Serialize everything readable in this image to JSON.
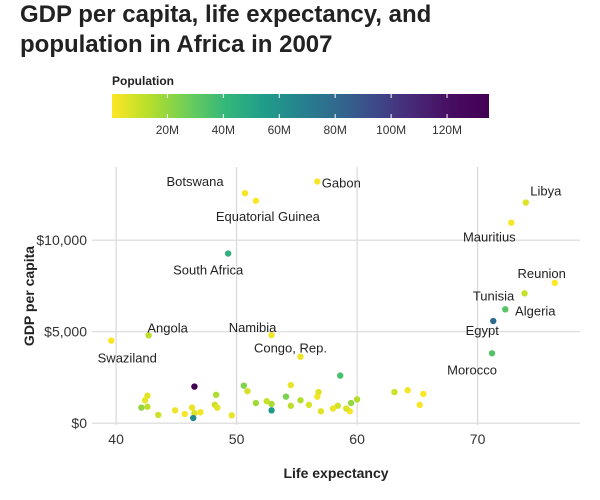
{
  "chart_data": {
    "type": "scatter",
    "title_lines": [
      "GDP per capita, life expectancy, and",
      "population in Africa in 2007"
    ],
    "xlabel": "Life expectancy",
    "ylabel": "GDP per capita",
    "xlim": [
      38,
      78.5
    ],
    "ylim": [
      -100,
      14000
    ],
    "xticks": [
      40,
      50,
      60,
      70
    ],
    "xtick_labels": [
      "40",
      "50",
      "60",
      "70"
    ],
    "yticks": [
      0,
      5000,
      10000
    ],
    "ytick_labels": [
      "$0",
      "$5,000",
      "$10,000"
    ],
    "grid": true,
    "color_scale": {
      "name": "viridis",
      "title": "Population",
      "min": 0.2,
      "max": 135,
      "ticks": [
        20,
        40,
        60,
        80,
        100,
        120
      ],
      "tick_labels": [
        "20M",
        "40M",
        "60M",
        "80M",
        "100M",
        "120M"
      ],
      "placement": "top"
    },
    "points": [
      {
        "x": 50.7,
        "y": 12570,
        "pop": 1.6,
        "label": "Botswana"
      },
      {
        "x": 51.6,
        "y": 12154,
        "pop": 0.6,
        "label": "Equatorial Guinea"
      },
      {
        "x": 56.7,
        "y": 13206,
        "pop": 1.5,
        "label": "Gabon"
      },
      {
        "x": 74.0,
        "y": 12057,
        "pop": 6.0,
        "label": "Libya"
      },
      {
        "x": 72.8,
        "y": 10957,
        "pop": 1.3,
        "label": "Mauritius"
      },
      {
        "x": 49.3,
        "y": 9270,
        "pop": 44.0,
        "label": "South Africa"
      },
      {
        "x": 76.4,
        "y": 7670,
        "pop": 0.8,
        "label": "Reunion"
      },
      {
        "x": 73.9,
        "y": 7093,
        "pop": 10.3,
        "label": "Tunisia"
      },
      {
        "x": 72.3,
        "y": 6223,
        "pop": 33.3,
        "label": "Algeria"
      },
      {
        "x": 71.3,
        "y": 5581,
        "pop": 80.3,
        "label": "Egypt"
      },
      {
        "x": 71.2,
        "y": 3820,
        "pop": 33.8,
        "label": "Morocco"
      },
      {
        "x": 52.9,
        "y": 4811,
        "pop": 2.1,
        "label": "Namibia"
      },
      {
        "x": 55.3,
        "y": 3633,
        "pop": 3.8,
        "label": "Congo, Rep."
      },
      {
        "x": 42.7,
        "y": 4797,
        "pop": 12.4,
        "label": "Angola"
      },
      {
        "x": 39.6,
        "y": 4513,
        "pop": 1.1,
        "label": "Swaziland"
      },
      {
        "x": 58.6,
        "y": 2600,
        "pop": 36.0,
        "label": ""
      },
      {
        "x": 46.5,
        "y": 2000,
        "pop": 135.0,
        "label": ""
      },
      {
        "x": 50.6,
        "y": 2050,
        "pop": 24.0,
        "label": ""
      },
      {
        "x": 50.9,
        "y": 1750,
        "pop": 8.0,
        "label": ""
      },
      {
        "x": 54.5,
        "y": 2080,
        "pop": 4.0,
        "label": ""
      },
      {
        "x": 56.8,
        "y": 1700,
        "pop": 6.0,
        "label": ""
      },
      {
        "x": 63.1,
        "y": 1700,
        "pop": 9.0,
        "label": ""
      },
      {
        "x": 64.2,
        "y": 1800,
        "pop": 2.0,
        "label": ""
      },
      {
        "x": 65.5,
        "y": 1600,
        "pop": 1.0,
        "label": ""
      },
      {
        "x": 65.2,
        "y": 1000,
        "pop": 1.5,
        "label": ""
      },
      {
        "x": 42.6,
        "y": 1500,
        "pop": 5.0,
        "label": ""
      },
      {
        "x": 42.4,
        "y": 1250,
        "pop": 3.5,
        "label": ""
      },
      {
        "x": 48.3,
        "y": 1550,
        "pop": 15.0,
        "label": ""
      },
      {
        "x": 48.2,
        "y": 1000,
        "pop": 9.0,
        "label": ""
      },
      {
        "x": 48.4,
        "y": 850,
        "pop": 5.0,
        "label": ""
      },
      {
        "x": 42.1,
        "y": 850,
        "pop": 20.0,
        "label": ""
      },
      {
        "x": 42.6,
        "y": 900,
        "pop": 12.0,
        "label": ""
      },
      {
        "x": 43.5,
        "y": 450,
        "pop": 9.0,
        "label": ""
      },
      {
        "x": 44.9,
        "y": 700,
        "pop": 3.0,
        "label": ""
      },
      {
        "x": 45.7,
        "y": 500,
        "pop": 1.5,
        "label": ""
      },
      {
        "x": 46.3,
        "y": 850,
        "pop": 4.0,
        "label": ""
      },
      {
        "x": 46.5,
        "y": 550,
        "pop": 6.0,
        "label": ""
      },
      {
        "x": 46.4,
        "y": 280,
        "pop": 64.0,
        "label": ""
      },
      {
        "x": 47.0,
        "y": 600,
        "pop": 2.0,
        "label": ""
      },
      {
        "x": 49.6,
        "y": 430,
        "pop": 4.0,
        "label": ""
      },
      {
        "x": 51.6,
        "y": 1100,
        "pop": 18.0,
        "label": ""
      },
      {
        "x": 52.5,
        "y": 1200,
        "pop": 10.0,
        "label": ""
      },
      {
        "x": 52.9,
        "y": 1050,
        "pop": 16.0,
        "label": ""
      },
      {
        "x": 52.9,
        "y": 700,
        "pop": 57.0,
        "label": ""
      },
      {
        "x": 54.1,
        "y": 1450,
        "pop": 25.0,
        "label": ""
      },
      {
        "x": 54.5,
        "y": 950,
        "pop": 12.0,
        "label": ""
      },
      {
        "x": 55.3,
        "y": 1250,
        "pop": 14.0,
        "label": ""
      },
      {
        "x": 56.0,
        "y": 1000,
        "pop": 7.0,
        "label": ""
      },
      {
        "x": 56.7,
        "y": 1450,
        "pop": 2.5,
        "label": ""
      },
      {
        "x": 57.0,
        "y": 650,
        "pop": 5.5,
        "label": ""
      },
      {
        "x": 58.0,
        "y": 800,
        "pop": 3.0,
        "label": ""
      },
      {
        "x": 58.4,
        "y": 950,
        "pop": 8.5,
        "label": ""
      },
      {
        "x": 59.4,
        "y": 650,
        "pop": 1.7,
        "label": ""
      },
      {
        "x": 59.5,
        "y": 1100,
        "pop": 20.0,
        "label": ""
      },
      {
        "x": 60.0,
        "y": 1300,
        "pop": 14.0,
        "label": ""
      },
      {
        "x": 59.1,
        "y": 800,
        "pop": 6.5,
        "label": ""
      }
    ]
  }
}
